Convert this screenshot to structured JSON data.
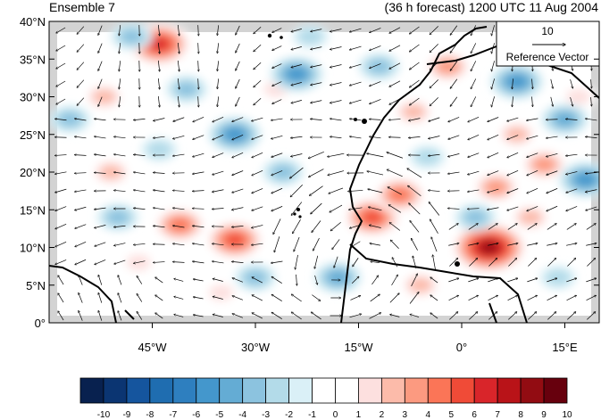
{
  "header": {
    "left_title": "Ensemble 7",
    "right_title": "(36 h forecast) 1200 UTC 11 Aug 2004"
  },
  "map": {
    "lat_labels": [
      "40°N",
      "35°N",
      "30°N",
      "25°N",
      "20°N",
      "15°N",
      "10°N",
      "5°N",
      "0°"
    ],
    "lon_labels": [
      "45°W",
      "30°W",
      "15°W",
      "0°",
      "15°E"
    ],
    "lat_range": [
      0,
      40
    ],
    "lon_range": [
      -60,
      20
    ],
    "reference_vector": {
      "magnitude": "10",
      "label": "Reference Vector"
    }
  },
  "colorbar": {
    "labels": [
      "-10",
      "-9",
      "-8",
      "-7",
      "-6",
      "-5",
      "-4",
      "-3",
      "-2",
      "-1",
      "0",
      "1",
      "2",
      "3",
      "4",
      "5",
      "6",
      "7",
      "8",
      "9",
      "10"
    ],
    "colors": [
      "#08214f",
      "#0b3572",
      "#15559e",
      "#1f6db0",
      "#2e7fbf",
      "#4497cc",
      "#64acd4",
      "#8cc3df",
      "#b3dbe9",
      "#daf0f7",
      "#ffffff",
      "#ffffff",
      "#fde0df",
      "#fcbbaa",
      "#fc9a80",
      "#fb7557",
      "#f04b37",
      "#d9252a",
      "#b91318",
      "#920c12",
      "#67000d"
    ]
  },
  "anomalies": [
    {
      "lon": -44,
      "lat": 37,
      "v": 7
    },
    {
      "lon": -13,
      "lat": 14,
      "v": 6
    },
    {
      "lon": -9,
      "lat": 17,
      "v": 5
    },
    {
      "lon": 4,
      "lat": 10,
      "v": 9
    },
    {
      "lon": -33,
      "lat": 11,
      "v": 6
    },
    {
      "lon": -41,
      "lat": 13,
      "v": 5
    },
    {
      "lon": 12,
      "lat": 21,
      "v": 4
    },
    {
      "lon": 5,
      "lat": 18,
      "v": 4
    },
    {
      "lon": -7,
      "lat": 28,
      "v": 3
    },
    {
      "lon": -2,
      "lat": 34,
      "v": 4
    },
    {
      "lon": 8,
      "lat": 25,
      "v": 3
    },
    {
      "lon": 10,
      "lat": 14,
      "v": 3
    },
    {
      "lon": -51,
      "lat": 20,
      "v": 3
    },
    {
      "lon": -52,
      "lat": 30,
      "v": 3
    },
    {
      "lon": -27,
      "lat": 31,
      "v": 2
    },
    {
      "lon": -6,
      "lat": 5,
      "v": 3
    },
    {
      "lon": 17,
      "lat": 30,
      "v": 2
    },
    {
      "lon": -35,
      "lat": 4,
      "v": 2
    },
    {
      "lon": -47,
      "lat": 8,
      "v": 2
    },
    {
      "lon": 8,
      "lat": 32,
      "v": -5
    },
    {
      "lon": -24,
      "lat": 33,
      "v": -5
    },
    {
      "lon": -33,
      "lat": 25,
      "v": -5
    },
    {
      "lon": 15,
      "lat": 27,
      "v": -4
    },
    {
      "lon": 18,
      "lat": 19,
      "v": -5
    },
    {
      "lon": -18,
      "lat": 6,
      "v": -4
    },
    {
      "lon": -26,
      "lat": 20,
      "v": -3
    },
    {
      "lon": -48,
      "lat": 38,
      "v": -3
    },
    {
      "lon": -57,
      "lat": 27,
      "v": -3
    },
    {
      "lon": -40,
      "lat": 31,
      "v": -3
    },
    {
      "lon": -22,
      "lat": 38,
      "v": -2
    },
    {
      "lon": -30,
      "lat": 6,
      "v": -3
    },
    {
      "lon": 2,
      "lat": 14,
      "v": -3
    },
    {
      "lon": -50,
      "lat": 14,
      "v": -3
    },
    {
      "lon": 14,
      "lat": 6,
      "v": -2
    },
    {
      "lon": -5,
      "lat": 22,
      "v": -2
    },
    {
      "lon": -44,
      "lat": 23,
      "v": -2
    },
    {
      "lon": -12,
      "lat": 34,
      "v": -3
    }
  ]
}
